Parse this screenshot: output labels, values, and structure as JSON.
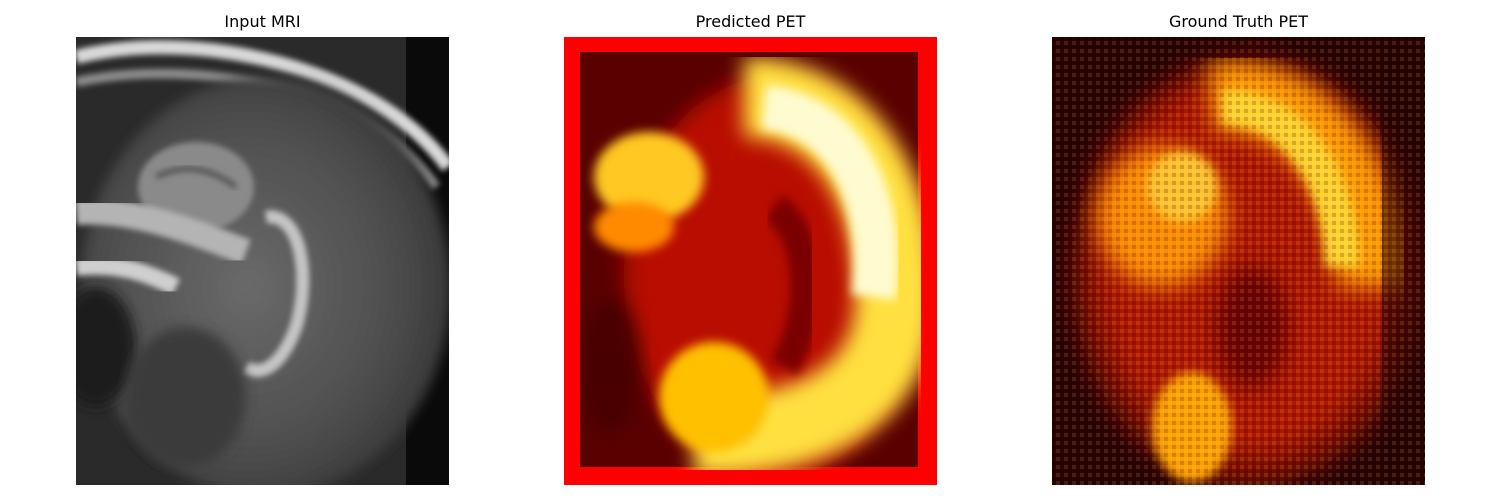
{
  "figure": {
    "panels": [
      {
        "title": "Input MRI",
        "colormap": "gray"
      },
      {
        "title": "Predicted PET",
        "colormap": "hot",
        "frame_color": "#ff0000"
      },
      {
        "title": "Ground Truth PET",
        "colormap": "hot"
      }
    ]
  }
}
